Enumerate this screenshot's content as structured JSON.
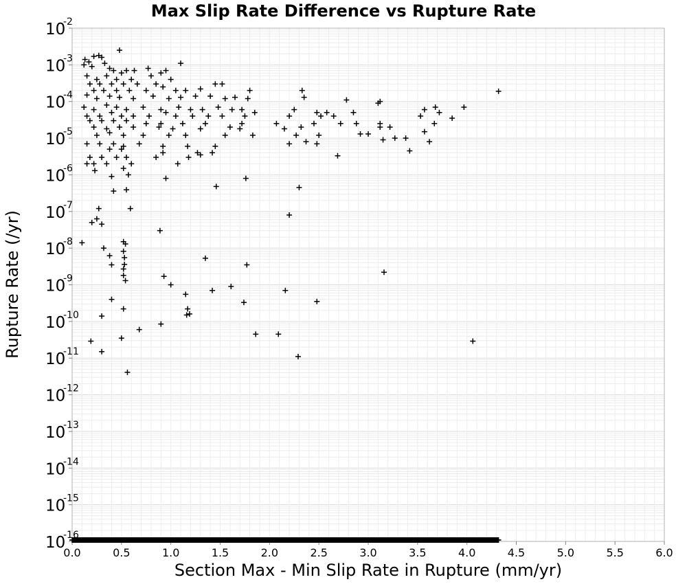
{
  "chart_data": {
    "type": "scatter",
    "title": "Max Slip Rate Difference vs Rupture Rate",
    "xlabel": "Section Max - Min Slip Rate in Rupture (mm/yr)",
    "ylabel": "Rupture Rate (/yr)",
    "xlim": [
      0.0,
      6.0
    ],
    "ylim": [
      1e-16,
      0.01
    ],
    "y_scale": "log",
    "grid": true,
    "marker": "+",
    "marker_color": "#000000",
    "x_ticks": [
      "0.0",
      "0.5",
      "1.0",
      "1.5",
      "2.0",
      "2.5",
      "3.0",
      "3.5",
      "4.0",
      "4.5",
      "5.0",
      "5.5",
      "6.0"
    ],
    "y_ticks": [
      {
        "base": "10",
        "exp": "-2"
      },
      {
        "base": "10",
        "exp": "-3"
      },
      {
        "base": "10",
        "exp": "-4"
      },
      {
        "base": "10",
        "exp": "-5"
      },
      {
        "base": "10",
        "exp": "-6"
      },
      {
        "base": "10",
        "exp": "-7"
      },
      {
        "base": "10",
        "exp": "-8"
      },
      {
        "base": "10",
        "exp": "-9"
      },
      {
        "base": "10",
        "exp": "-10"
      },
      {
        "base": "10",
        "exp": "-11"
      },
      {
        "base": "10",
        "exp": "-12"
      },
      {
        "base": "10",
        "exp": "-13"
      },
      {
        "base": "10",
        "exp": "-14"
      },
      {
        "base": "10",
        "exp": "-15"
      },
      {
        "base": "10",
        "exp": "-16"
      }
    ],
    "points": [
      [
        0.48,
        0.0025
      ],
      [
        0.13,
        0.0014
      ],
      [
        0.22,
        0.0017
      ],
      [
        0.27,
        0.0018
      ],
      [
        0.3,
        0.0016
      ],
      [
        0.12,
        0.001
      ],
      [
        0.17,
        0.0012
      ],
      [
        0.2,
        0.0009
      ],
      [
        0.33,
        0.0011
      ],
      [
        0.38,
        0.0008
      ],
      [
        0.42,
        0.0007
      ],
      [
        0.5,
        0.0006
      ],
      [
        0.55,
        0.0007
      ],
      [
        0.63,
        0.0007
      ],
      [
        0.77,
        0.0008
      ],
      [
        0.9,
        0.0006
      ],
      [
        1.1,
        0.0011
      ],
      [
        0.15,
        0.0005
      ],
      [
        0.25,
        0.0004
      ],
      [
        0.35,
        0.0005
      ],
      [
        0.45,
        0.0004
      ],
      [
        0.6,
        0.0004
      ],
      [
        0.8,
        0.0005
      ],
      [
        0.95,
        0.0007
      ],
      [
        1.0,
        0.0004
      ],
      [
        0.18,
        0.0003
      ],
      [
        0.28,
        0.0003
      ],
      [
        0.4,
        0.0003
      ],
      [
        0.52,
        0.0003
      ],
      [
        0.66,
        0.0003
      ],
      [
        0.85,
        0.0003
      ],
      [
        0.22,
        0.0002
      ],
      [
        0.32,
        0.0002
      ],
      [
        0.45,
        0.0002
      ],
      [
        0.58,
        0.0002
      ],
      [
        0.75,
        0.0002
      ],
      [
        0.92,
        0.00025
      ],
      [
        1.05,
        0.0002
      ],
      [
        1.15,
        0.0002
      ],
      [
        1.3,
        0.00022
      ],
      [
        1.45,
        0.0003
      ],
      [
        1.52,
        0.0003
      ],
      [
        1.8,
        0.0002
      ],
      [
        2.33,
        0.0002
      ],
      [
        4.32,
        0.00019
      ],
      [
        0.15,
        0.00015
      ],
      [
        0.25,
        0.00012
      ],
      [
        0.38,
        0.00014
      ],
      [
        0.48,
        0.00013
      ],
      [
        0.62,
        0.00012
      ],
      [
        0.82,
        0.00014
      ],
      [
        0.98,
        0.00012
      ],
      [
        1.1,
        0.00013
      ],
      [
        1.25,
        0.00014
      ],
      [
        1.4,
        0.00014
      ],
      [
        1.55,
        0.00012
      ],
      [
        1.65,
        0.00013
      ],
      [
        1.78,
        0.00012
      ],
      [
        2.35,
        0.00013
      ],
      [
        2.78,
        0.00011
      ],
      [
        3.12,
        0.0001
      ],
      [
        3.1,
        9e-05
      ],
      [
        3.97,
        7e-05
      ],
      [
        0.12,
        7e-05
      ],
      [
        0.22,
        6e-05
      ],
      [
        0.35,
        8e-05
      ],
      [
        0.45,
        7e-05
      ],
      [
        0.55,
        6e-05
      ],
      [
        0.72,
        7e-05
      ],
      [
        0.9,
        6e-05
      ],
      [
        1.08,
        7e-05
      ],
      [
        1.2,
        6e-05
      ],
      [
        1.32,
        6e-05
      ],
      [
        1.48,
        7e-05
      ],
      [
        1.62,
        6e-05
      ],
      [
        1.72,
        6e-05
      ],
      [
        1.85,
        5e-05
      ],
      [
        2.25,
        6e-05
      ],
      [
        2.48,
        5e-05
      ],
      [
        2.58,
        5e-05
      ],
      [
        2.65,
        4e-05
      ],
      [
        2.85,
        5e-05
      ],
      [
        3.57,
        6e-05
      ],
      [
        3.68,
        7e-05
      ],
      [
        3.72,
        5e-05
      ],
      [
        0.15,
        4e-05
      ],
      [
        0.28,
        4e-05
      ],
      [
        0.4,
        5e-05
      ],
      [
        0.5,
        4e-05
      ],
      [
        0.62,
        4e-05
      ],
      [
        0.78,
        4e-05
      ],
      [
        0.95,
        5e-05
      ],
      [
        1.05,
        4e-05
      ],
      [
        1.22,
        4e-05
      ],
      [
        1.38,
        4e-05
      ],
      [
        1.52,
        4e-05
      ],
      [
        1.75,
        4e-05
      ],
      [
        2.2,
        4e-05
      ],
      [
        2.52,
        4e-05
      ],
      [
        3.53,
        4e-05
      ],
      [
        3.85,
        3.5e-05
      ],
      [
        0.18,
        3e-05
      ],
      [
        0.3,
        3e-05
      ],
      [
        0.42,
        3e-05
      ],
      [
        0.55,
        3e-05
      ],
      [
        0.75,
        2.5e-05
      ],
      [
        0.9,
        2.5e-05
      ],
      [
        1.12,
        2.5e-05
      ],
      [
        1.35,
        2.5e-05
      ],
      [
        1.72,
        2.5e-05
      ],
      [
        2.07,
        2.5e-05
      ],
      [
        2.45,
        2.5e-05
      ],
      [
        2.72,
        2.5e-05
      ],
      [
        2.88,
        2.5e-05
      ],
      [
        3.12,
        2.5e-05
      ],
      [
        3.22,
        2e-05
      ],
      [
        3.67,
        2.5e-05
      ],
      [
        0.22,
        2e-05
      ],
      [
        0.35,
        1.8e-05
      ],
      [
        0.48,
        2e-05
      ],
      [
        0.62,
        2e-05
      ],
      [
        0.88,
        2e-05
      ],
      [
        1.02,
        1.8e-05
      ],
      [
        1.3,
        1.8e-05
      ],
      [
        1.6,
        2e-05
      ],
      [
        1.7,
        1.8e-05
      ],
      [
        2.15,
        1.8e-05
      ],
      [
        2.32,
        2e-05
      ],
      [
        3.12,
        2e-05
      ],
      [
        3.57,
        1.5e-05
      ],
      [
        0.25,
        1.2e-05
      ],
      [
        0.38,
        1.4e-05
      ],
      [
        0.52,
        1.2e-05
      ],
      [
        0.72,
        1.2e-05
      ],
      [
        0.98,
        1.2e-05
      ],
      [
        1.15,
        1.2e-05
      ],
      [
        1.55,
        1.2e-05
      ],
      [
        1.83,
        1.2e-05
      ],
      [
        2.27,
        1.2e-05
      ],
      [
        2.5,
        1.2e-05
      ],
      [
        2.92,
        1.3e-05
      ],
      [
        3.0,
        1.3e-05
      ],
      [
        3.15,
        9e-06
      ],
      [
        3.27,
        1e-05
      ],
      [
        3.38,
        1e-05
      ],
      [
        3.62,
        8e-06
      ],
      [
        0.15,
        7e-06
      ],
      [
        0.28,
        7e-06
      ],
      [
        0.42,
        7e-06
      ],
      [
        0.52,
        6e-06
      ],
      [
        0.68,
        7e-06
      ],
      [
        0.92,
        6e-06
      ],
      [
        1.17,
        6e-06
      ],
      [
        1.45,
        6e-06
      ],
      [
        2.2,
        7e-06
      ],
      [
        2.37,
        8e-06
      ],
      [
        2.48,
        7e-06
      ],
      [
        0.38,
        5e-06
      ],
      [
        0.5,
        5e-06
      ],
      [
        0.92,
        4e-06
      ],
      [
        0.18,
        3e-06
      ],
      [
        0.3,
        3e-06
      ],
      [
        0.45,
        3e-06
      ],
      [
        0.55,
        3e-06
      ],
      [
        0.85,
        3e-06
      ],
      [
        1.27,
        4e-06
      ],
      [
        1.3,
        3.5e-06
      ],
      [
        1.18,
        3e-06
      ],
      [
        1.42,
        4e-06
      ],
      [
        3.42,
        4.5e-06
      ],
      [
        0.15,
        2e-06
      ],
      [
        0.22,
        2e-06
      ],
      [
        0.35,
        2e-06
      ],
      [
        0.52,
        1.5e-06
      ],
      [
        0.6,
        2e-06
      ],
      [
        1.07,
        2e-06
      ],
      [
        0.23,
        1.3e-06
      ],
      [
        0.4,
        9e-07
      ],
      [
        0.57,
        1e-06
      ],
      [
        0.95,
        8e-07
      ],
      [
        1.76,
        8e-07
      ],
      [
        2.69,
        3.3e-06
      ],
      [
        1.46,
        4.8e-07
      ],
      [
        0.42,
        3.6e-07
      ],
      [
        0.55,
        3.9e-07
      ],
      [
        2.3,
        4.5e-07
      ],
      [
        0.27,
        1.2e-07
      ],
      [
        0.59,
        1.2e-07
      ],
      [
        0.2,
        5e-08
      ],
      [
        0.25,
        6.3e-08
      ],
      [
        0.3,
        4.5e-08
      ],
      [
        2.2,
        8e-08
      ],
      [
        0.89,
        3e-08
      ],
      [
        0.1,
        1.4e-08
      ],
      [
        0.52,
        1.5e-08
      ],
      [
        0.54,
        1.3e-08
      ],
      [
        0.32,
        1e-08
      ],
      [
        0.52,
        8.2e-09
      ],
      [
        0.38,
        6.2e-09
      ],
      [
        0.53,
        5.5e-09
      ],
      [
        0.4,
        3.5e-09
      ],
      [
        0.53,
        3.6e-09
      ],
      [
        1.35,
        5.3e-09
      ],
      [
        1.77,
        3.5e-09
      ],
      [
        0.52,
        2.7e-09
      ],
      [
        3.16,
        2.2e-09
      ],
      [
        0.52,
        1.8e-09
      ],
      [
        0.93,
        1.7e-09
      ],
      [
        0.54,
        1.3e-09
      ],
      [
        1.0,
        1e-09
      ],
      [
        1.61,
        9e-10
      ],
      [
        1.42,
        7e-10
      ],
      [
        2.16,
        7e-10
      ],
      [
        1.15,
        5.5e-10
      ],
      [
        0.4,
        4e-10
      ],
      [
        1.74,
        3.3e-10
      ],
      [
        2.48,
        3.5e-10
      ],
      [
        0.52,
        2.2e-10
      ],
      [
        1.17,
        2.2e-10
      ],
      [
        0.3,
        1.4e-10
      ],
      [
        1.16,
        1.5e-10
      ],
      [
        1.19,
        1.6e-10
      ],
      [
        0.9,
        8.5e-11
      ],
      [
        0.68,
        6e-11
      ],
      [
        1.86,
        4.5e-11
      ],
      [
        2.09,
        4.5e-11
      ],
      [
        0.5,
        3.5e-11
      ],
      [
        0.19,
        2.9e-11
      ],
      [
        4.06,
        2.9e-11
      ],
      [
        0.3,
        1.5e-11
      ],
      [
        2.29,
        1.1e-11
      ],
      [
        0.56,
        4.1e-12
      ]
    ],
    "floor_band": {
      "y": 1e-16,
      "x_start": 0.0,
      "x_end": 4.32
    }
  }
}
